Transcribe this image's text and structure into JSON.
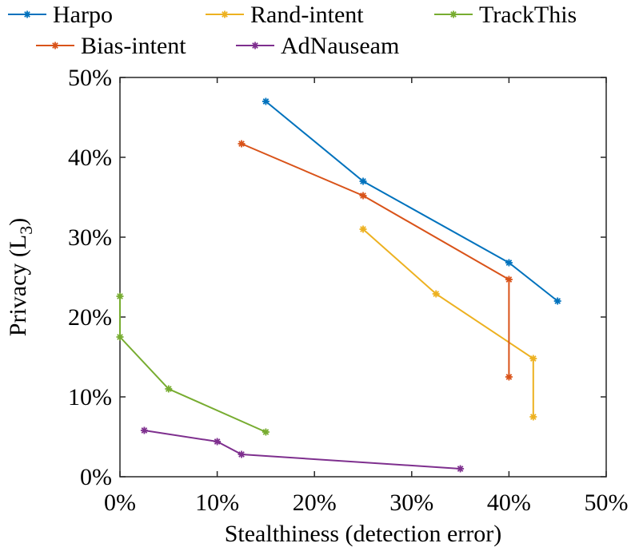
{
  "chart_data": {
    "type": "line",
    "xlabel": "Stealthiness (detection error)",
    "ylabel": "Privacy (L",
    "ylabel_sub": "3",
    "ylabel_close": ")",
    "xlim": [
      0,
      50
    ],
    "ylim": [
      0,
      50
    ],
    "xticks": [
      0,
      10,
      20,
      30,
      40,
      50
    ],
    "yticks": [
      0,
      10,
      20,
      30,
      40,
      50
    ],
    "xtick_labels": [
      "0%",
      "10%",
      "20%",
      "30%",
      "40%",
      "50%"
    ],
    "ytick_labels": [
      "0%",
      "10%",
      "20%",
      "30%",
      "40%",
      "50%"
    ],
    "grid": false,
    "legend_position": "top",
    "series": [
      {
        "name": "Harpo",
        "color": "#0072BD",
        "x": [
          15,
          25,
          40,
          45
        ],
        "y": [
          47,
          37,
          26.8,
          22
        ]
      },
      {
        "name": "Rand-intent",
        "color": "#EDB120",
        "x": [
          25,
          32.5,
          42.5,
          42.5
        ],
        "y": [
          31,
          22.9,
          14.8,
          7.5
        ]
      },
      {
        "name": "TrackThis",
        "color": "#77AC30",
        "x": [
          0,
          0,
          5,
          15
        ],
        "y": [
          22.6,
          17.5,
          11,
          5.6
        ]
      },
      {
        "name": "Bias-intent",
        "color": "#D95319",
        "x": [
          12.5,
          25,
          40,
          40
        ],
        "y": [
          41.7,
          35.2,
          24.7,
          12.5
        ]
      },
      {
        "name": "AdNauseam",
        "color": "#7E2F8E",
        "x": [
          2.5,
          10,
          12.5,
          35
        ],
        "y": [
          5.8,
          4.4,
          2.8,
          1
        ]
      }
    ]
  }
}
